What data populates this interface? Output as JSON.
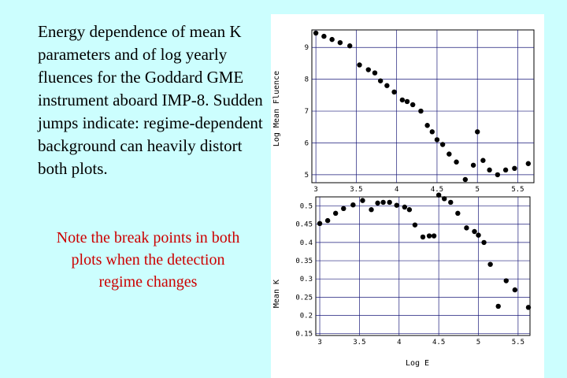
{
  "description_text": "Energy dependence of mean K parameters and of log yearly fluences for the Goddard GME instrument aboard IMP-8. Sudden jumps indicate: regime-dependent background can heavily distort both plots.",
  "note_text": "Note the break points in both plots when the detection regime changes",
  "colors": {
    "background": "#ccfefe",
    "note": "#cc0000",
    "grid": "#1a1a7a",
    "marker": "#000000"
  },
  "chart_data": [
    {
      "type": "scatter",
      "ylabel": "Log Mean Fluence",
      "xlabel": "",
      "xlim": [
        2.95,
        5.7
      ],
      "ylim": [
        4.75,
        9.55
      ],
      "xticks": [
        3,
        3.5,
        4,
        4.5,
        5,
        5.5
      ],
      "xtick_labels": [
        "3",
        "3.5",
        "4",
        "4.5",
        "5",
        "5.5"
      ],
      "yticks": [
        5,
        6,
        7,
        8,
        9
      ],
      "ytick_labels": [
        "5",
        "6",
        "7",
        "8",
        "9"
      ],
      "x": [
        3.0,
        3.1,
        3.2,
        3.3,
        3.42,
        3.54,
        3.65,
        3.73,
        3.8,
        3.88,
        3.97,
        4.07,
        4.13,
        4.2,
        4.3,
        4.38,
        4.44,
        4.5,
        4.57,
        4.65,
        4.74,
        4.85,
        4.95,
        5.0,
        5.07,
        5.15,
        5.25,
        5.35,
        5.46,
        5.63
      ],
      "y": [
        9.45,
        9.35,
        9.25,
        9.15,
        9.05,
        8.45,
        8.3,
        8.2,
        7.95,
        7.8,
        7.6,
        7.35,
        7.3,
        7.2,
        7.0,
        6.55,
        6.35,
        6.1,
        5.95,
        5.65,
        5.4,
        4.85,
        5.3,
        6.35,
        5.45,
        5.15,
        5.0,
        5.15,
        5.2,
        5.35
      ]
    },
    {
      "type": "scatter",
      "ylabel": "Mean K",
      "xlabel": "Log E",
      "xlim": [
        2.95,
        5.65
      ],
      "ylim": [
        0.145,
        0.525
      ],
      "xticks": [
        3,
        3.5,
        4,
        4.5,
        5,
        5.5
      ],
      "xtick_labels": [
        "3",
        "3.5",
        "4",
        "4.5",
        "5",
        "5.5"
      ],
      "yticks": [
        0.15,
        0.2,
        0.25,
        0.3,
        0.35,
        0.4,
        0.45,
        0.5
      ],
      "ytick_labels": [
        "0.15",
        "0.2",
        "0.25",
        "0.3",
        "0.35",
        "0.4",
        "0.45",
        "0.5"
      ],
      "x": [
        3.0,
        3.1,
        3.2,
        3.3,
        3.42,
        3.54,
        3.65,
        3.73,
        3.8,
        3.88,
        3.97,
        4.07,
        4.13,
        4.2,
        4.3,
        4.38,
        4.44,
        4.5,
        4.57,
        4.65,
        4.74,
        4.85,
        4.95,
        5.0,
        5.07,
        5.15,
        5.25,
        5.35,
        5.46,
        5.63
      ],
      "y": [
        0.452,
        0.46,
        0.48,
        0.493,
        0.503,
        0.515,
        0.49,
        0.508,
        0.51,
        0.51,
        0.502,
        0.497,
        0.49,
        0.448,
        0.415,
        0.418,
        0.418,
        0.53,
        0.52,
        0.51,
        0.48,
        0.44,
        0.43,
        0.42,
        0.4,
        0.34,
        0.225,
        0.295,
        0.27,
        0.222
      ]
    }
  ]
}
